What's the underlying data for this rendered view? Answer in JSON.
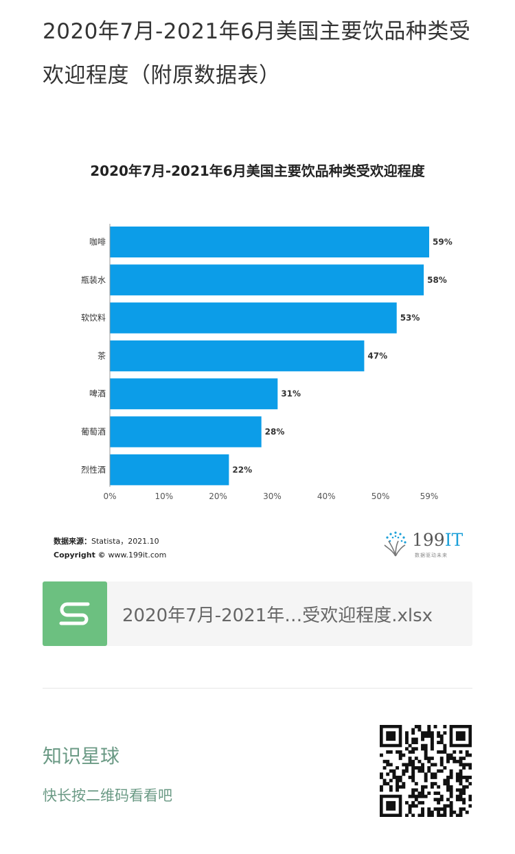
{
  "page": {
    "title": "2020年7月-2021年6月美国主要饮品种类受欢迎程度（附原数据表）"
  },
  "chart_data": {
    "type": "bar",
    "orientation": "horizontal",
    "title": "2020年7月-2021年6月美国主要饮品种类受欢迎程度",
    "categories": [
      "咖啡",
      "瓶装水",
      "软饮料",
      "茶",
      "啤酒",
      "葡萄酒",
      "烈性酒"
    ],
    "values": [
      59,
      58,
      53,
      47,
      31,
      28,
      22
    ],
    "value_labels": [
      "59%",
      "58%",
      "53%",
      "47%",
      "31%",
      "28%",
      "22%"
    ],
    "x_ticks": [
      0,
      10,
      20,
      30,
      40,
      50,
      59
    ],
    "x_tick_labels": [
      "0%",
      "10%",
      "20%",
      "30%",
      "40%",
      "50%",
      "59%"
    ],
    "xlim": [
      0,
      59
    ],
    "bar_color": "#0c9de8",
    "grid": false
  },
  "source": {
    "label": "数据来源：",
    "value": "Statista，2021.10",
    "copyright_label": "Copyright ©",
    "copyright_value": "www.199it.com"
  },
  "brand": {
    "name_num": "199",
    "name_it": "IT",
    "slogan": "数据驱动未来",
    "icon": "dandelion-logo-icon"
  },
  "attachment": {
    "file_name": "2020年7月-2021年…受欢迎程度.xlsx",
    "icon": "spreadsheet-s-icon",
    "icon_color": "#6cc080"
  },
  "planet": {
    "title": "知识星球",
    "subtitle": "快长按二维码看看吧",
    "qr_icon": "qr-code-icon",
    "accent": "#6b9a85"
  }
}
